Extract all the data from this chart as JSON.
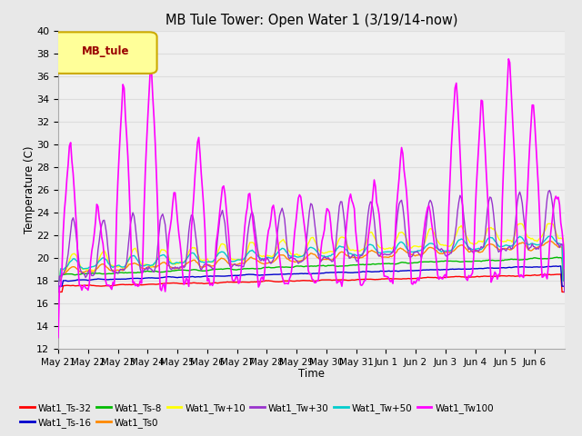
{
  "title": "MB Tule Tower: Open Water 1 (3/19/14-now)",
  "xlabel": "Time",
  "ylabel": "Temperature (C)",
  "ylim": [
    12,
    40
  ],
  "yticks": [
    12,
    14,
    16,
    18,
    20,
    22,
    24,
    26,
    28,
    30,
    32,
    34,
    36,
    38,
    40
  ],
  "legend_label": "MB_tule",
  "legend_box_color": "#ffff99",
  "legend_box_edge": "#ccaa00",
  "bg_color": "#e8e8e8",
  "plot_bg_color": "#f0f0f0",
  "grid_color": "#dddddd",
  "series": {
    "Wat1_Ts-32": {
      "color": "#ff0000"
    },
    "Wat1_Ts-16": {
      "color": "#0000cc"
    },
    "Wat1_Ts-8": {
      "color": "#00bb00"
    },
    "Wat1_Ts0": {
      "color": "#ff8800"
    },
    "Wat1_Tw+10": {
      "color": "#ffff00"
    },
    "Wat1_Tw+30": {
      "color": "#9933cc"
    },
    "Wat1_Tw+50": {
      "color": "#00cccc"
    },
    "Wat1_Tw100": {
      "color": "#ff00ff"
    }
  },
  "xticklabels": [
    "May 21",
    "May 22",
    "May 23",
    "May 24",
    "May 25",
    "May 26",
    "May 27",
    "May 28",
    "May 29",
    "May 30",
    "May 31",
    "Jun 1",
    "Jun 2",
    "Jun 3",
    "Jun 4",
    "Jun 5",
    "Jun 6"
  ]
}
